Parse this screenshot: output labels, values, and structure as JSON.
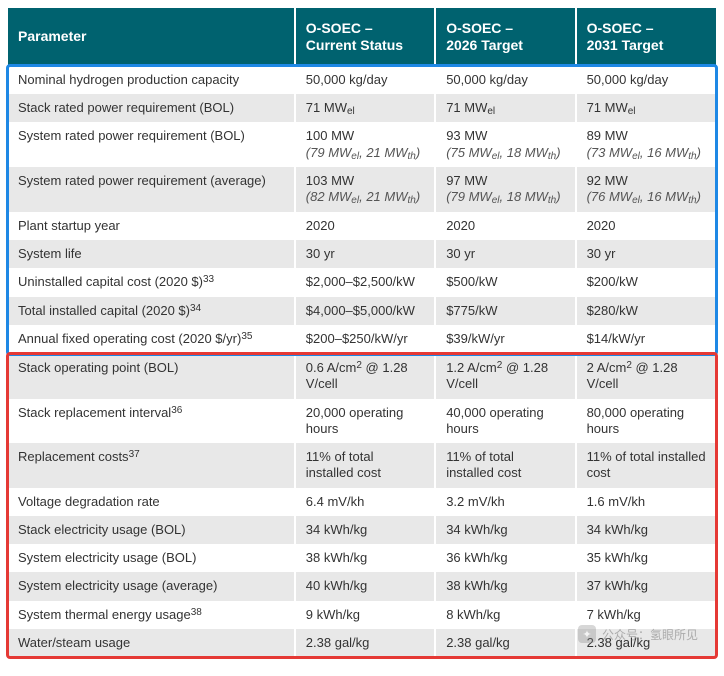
{
  "table": {
    "header_bg": "#00626f",
    "header_fg": "#ffffff",
    "row_odd_bg": "#ffffff",
    "row_even_bg": "#e8e8e8",
    "columns": [
      {
        "key": "param",
        "label": "Parameter"
      },
      {
        "key": "cur",
        "label": "O-SOEC –\nCurrent Status"
      },
      {
        "key": "t2026",
        "label": "O-SOEC –\n2026 Target"
      },
      {
        "key": "t2031",
        "label": "O-SOEC –\n2031 Target"
      }
    ],
    "rows": [
      {
        "param": {
          "text": "Nominal hydrogen production capacity"
        },
        "cur": {
          "text": "50,000 kg/day"
        },
        "t2026": {
          "text": "50,000 kg/day"
        },
        "t2031": {
          "text": "50,000 kg/day"
        }
      },
      {
        "param": {
          "text": "Stack rated power requirement (BOL)"
        },
        "cur": {
          "text": "71 MW",
          "sub_after": "el"
        },
        "t2026": {
          "text": "71 MW",
          "sub_after": "el"
        },
        "t2031": {
          "text": "71 MW",
          "sub_after": "el"
        }
      },
      {
        "param": {
          "text": "System rated power requirement (BOL)"
        },
        "cur": {
          "text": "100 MW",
          "ital_mw": {
            "a": "(79 MW",
            "a_sub": "el",
            "mid": ", 21 MW",
            "b_sub": "th",
            "end": ")"
          }
        },
        "t2026": {
          "text": "93 MW",
          "ital_mw": {
            "a": "(75 MW",
            "a_sub": "el",
            "mid": ", 18 MW",
            "b_sub": "th",
            "end": ")"
          }
        },
        "t2031": {
          "text": "89 MW",
          "ital_mw": {
            "a": "(73 MW",
            "a_sub": "el",
            "mid": ", 16 MW",
            "b_sub": "th",
            "end": ")"
          }
        }
      },
      {
        "param": {
          "text": "System rated power requirement (average)"
        },
        "cur": {
          "text": "103 MW",
          "ital_mw": {
            "a": "(82 MW",
            "a_sub": "el",
            "mid": ", 21 MW",
            "b_sub": "th",
            "end": ")"
          }
        },
        "t2026": {
          "text": "97 MW",
          "ital_mw": {
            "a": "(79 MW",
            "a_sub": "el",
            "mid": ", 18 MW",
            "b_sub": "th",
            "end": ")"
          }
        },
        "t2031": {
          "text": "92 MW",
          "ital_mw": {
            "a": "(76 MW",
            "a_sub": "el",
            "mid": ", 16 MW",
            "b_sub": "th",
            "end": ")"
          }
        }
      },
      {
        "param": {
          "text": "Plant startup year"
        },
        "cur": {
          "text": "2020"
        },
        "t2026": {
          "text": "2020"
        },
        "t2031": {
          "text": "2020"
        }
      },
      {
        "param": {
          "text": "System life"
        },
        "cur": {
          "text": "30 yr"
        },
        "t2026": {
          "text": "30 yr"
        },
        "t2031": {
          "text": "30 yr"
        }
      },
      {
        "param": {
          "text": "Uninstalled capital cost (2020 $)",
          "sup_after": "33"
        },
        "cur": {
          "text": "$2,000–$2,500/kW"
        },
        "t2026": {
          "text": "$500/kW"
        },
        "t2031": {
          "text": "$200/kW"
        }
      },
      {
        "param": {
          "text": "Total installed capital (2020 $)",
          "sup_after": "34"
        },
        "cur": {
          "text": "$4,000–$5,000/kW"
        },
        "t2026": {
          "text": "$775/kW"
        },
        "t2031": {
          "text": "$280/kW"
        }
      },
      {
        "param": {
          "text": "Annual fixed operating cost (2020 $/yr)",
          "sup_after": "35"
        },
        "cur": {
          "text": "$200–$250/kW/yr"
        },
        "t2026": {
          "text": "$39/kW/yr"
        },
        "t2031": {
          "text": "$14/kW/yr"
        }
      },
      {
        "param": {
          "text": "Stack operating point (BOL)"
        },
        "cur": {
          "acm": {
            "pre": "0.6 A/cm",
            "sup": "2",
            "post": " @ 1.28 V/cell"
          }
        },
        "t2026": {
          "acm": {
            "pre": "1.2 A/cm",
            "sup": "2",
            "post": " @ 1.28 V/cell"
          }
        },
        "t2031": {
          "acm": {
            "pre": "2 A/cm",
            "sup": "2",
            "post": " @ 1.28 V/cell"
          }
        }
      },
      {
        "param": {
          "text": "Stack replacement interval",
          "sup_after": "36"
        },
        "cur": {
          "text": "20,000 operating hours"
        },
        "t2026": {
          "text": "40,000 operating hours"
        },
        "t2031": {
          "text": "80,000 operating hours"
        }
      },
      {
        "param": {
          "text": "Replacement costs",
          "sup_after": "37"
        },
        "cur": {
          "text": "11% of total installed cost"
        },
        "t2026": {
          "text": "11% of total installed cost"
        },
        "t2031": {
          "text": "11% of total installed cost"
        }
      },
      {
        "param": {
          "text": "Voltage degradation rate"
        },
        "cur": {
          "text": "6.4 mV/kh"
        },
        "t2026": {
          "text": "3.2 mV/kh"
        },
        "t2031": {
          "text": "1.6 mV/kh"
        }
      },
      {
        "param": {
          "text": "Stack electricity usage (BOL)"
        },
        "cur": {
          "text": "34 kWh/kg"
        },
        "t2026": {
          "text": "34 kWh/kg"
        },
        "t2031": {
          "text": "34 kWh/kg"
        }
      },
      {
        "param": {
          "text": "System electricity usage (BOL)"
        },
        "cur": {
          "text": "38 kWh/kg"
        },
        "t2026": {
          "text": "36 kWh/kg"
        },
        "t2031": {
          "text": "35 kWh/kg"
        }
      },
      {
        "param": {
          "text": "System electricity usage (average)"
        },
        "cur": {
          "text": "40 kWh/kg"
        },
        "t2026": {
          "text": "38 kWh/kg"
        },
        "t2031": {
          "text": "37 kWh/kg"
        }
      },
      {
        "param": {
          "text": "System thermal energy usage",
          "sup_after": "38"
        },
        "cur": {
          "text": "9 kWh/kg"
        },
        "t2026": {
          "text": "8 kWh/kg"
        },
        "t2031": {
          "text": "7 kWh/kg"
        }
      },
      {
        "param": {
          "text": "Water/steam usage"
        },
        "cur": {
          "text": "2.38 gal/kg"
        },
        "t2026": {
          "text": "2.38 gal/kg"
        },
        "t2031": {
          "text": "2.38 gal/kg"
        }
      }
    ]
  },
  "highlights": {
    "blue": {
      "color": "#1e88e5",
      "rows_from": 0,
      "rows_to": 8
    },
    "red": {
      "color": "#e53935",
      "rows_from": 9,
      "rows_to": 17
    }
  },
  "watermark": {
    "text": "公众号：氢眼所见"
  }
}
